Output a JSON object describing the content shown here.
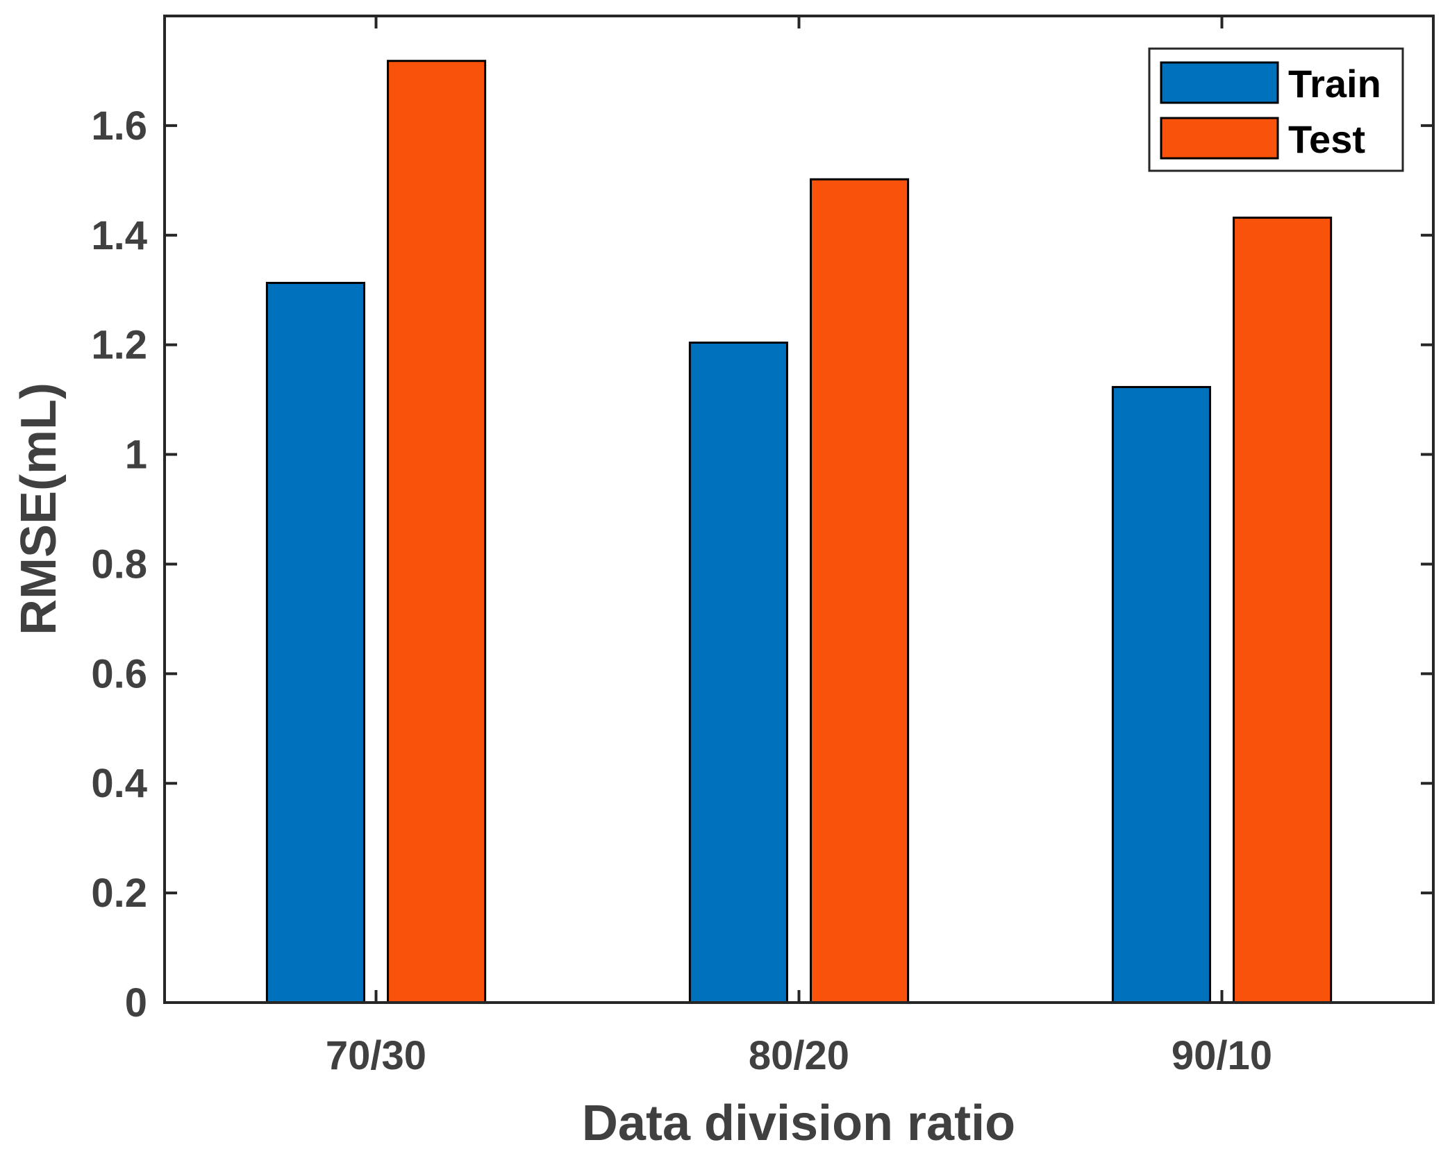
{
  "chart_data": {
    "type": "bar",
    "title": "",
    "xlabel": "Data division ratio",
    "ylabel": "RMSE(mL)",
    "categories": [
      "70/30",
      "80/20",
      "90/10"
    ],
    "series": [
      {
        "name": "Train",
        "values": [
          1.313,
          1.204,
          1.123
        ],
        "color": "#0072BD"
      },
      {
        "name": "Test",
        "values": [
          1.718,
          1.502,
          1.432
        ],
        "color": "#F9530B"
      }
    ],
    "ylim": [
      0,
      1.8
    ],
    "yticks": [
      0,
      0.2,
      0.4,
      0.6,
      0.8,
      1,
      1.2,
      1.4,
      1.6
    ],
    "ytick_labels": [
      "0",
      "0.2",
      "0.4",
      "0.6",
      "0.8",
      "1",
      "1.2",
      "1.4",
      "1.6"
    ],
    "grid": false,
    "legend": {
      "placement": "top-right",
      "entries": [
        "Train",
        "Test"
      ]
    }
  }
}
